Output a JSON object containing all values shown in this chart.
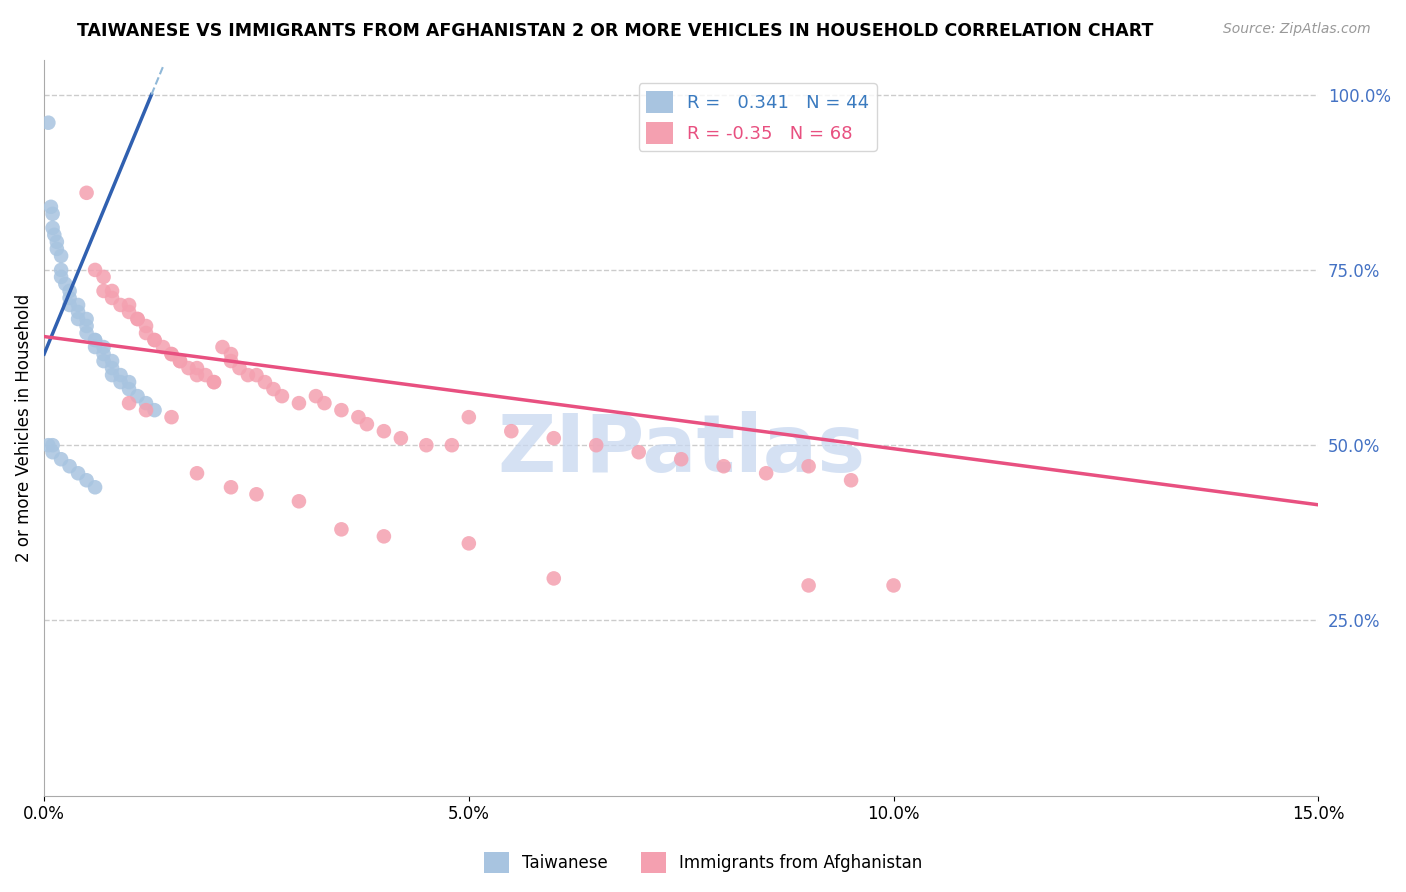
{
  "title": "TAIWANESE VS IMMIGRANTS FROM AFGHANISTAN 2 OR MORE VEHICLES IN HOUSEHOLD CORRELATION CHART",
  "source": "Source: ZipAtlas.com",
  "ylabel": "2 or more Vehicles in Household",
  "x_min": 0.0,
  "x_max": 0.15,
  "y_min": 0.0,
  "y_max": 1.05,
  "right_yticks": [
    1.0,
    0.75,
    0.5,
    0.25
  ],
  "right_yticklabels": [
    "100.0%",
    "75.0%",
    "50.0%",
    "25.0%"
  ],
  "x_tick_positions": [
    0.0,
    0.05,
    0.1,
    0.15
  ],
  "x_tick_labels": [
    "0.0%",
    "5.0%",
    "10.0%",
    "15.0%"
  ],
  "gridline_color": "#cccccc",
  "gridline_style": "--",
  "background_color": "#ffffff",
  "taiwanese_color": "#a8c4e0",
  "afghanistan_color": "#f4a0b0",
  "taiwan_line_color": "#3060b0",
  "taiwan_line_dashed_color": "#90b8d8",
  "afghanistan_line_color": "#e85080",
  "taiwan_R": 0.341,
  "taiwan_N": 44,
  "afghanistan_R": -0.35,
  "afghanistan_N": 68,
  "watermark": "ZIPatlas",
  "watermark_color": "#c8d8f0",
  "taiwan_line_x0": 0.0,
  "taiwan_line_y0": 0.63,
  "taiwan_line_x1": 0.014,
  "taiwan_line_y1": 1.04,
  "afghanistan_line_x0": 0.0,
  "afghanistan_line_y0": 0.655,
  "afghanistan_line_x1": 0.15,
  "afghanistan_line_y1": 0.415,
  "taiwan_scatter_x": [
    0.0005,
    0.0008,
    0.001,
    0.001,
    0.0012,
    0.0015,
    0.0015,
    0.002,
    0.002,
    0.002,
    0.0025,
    0.003,
    0.003,
    0.003,
    0.004,
    0.004,
    0.004,
    0.005,
    0.005,
    0.005,
    0.006,
    0.006,
    0.006,
    0.007,
    0.007,
    0.007,
    0.008,
    0.008,
    0.008,
    0.009,
    0.009,
    0.01,
    0.01,
    0.011,
    0.012,
    0.013,
    0.0005,
    0.001,
    0.001,
    0.002,
    0.003,
    0.004,
    0.005,
    0.006
  ],
  "taiwan_scatter_y": [
    0.96,
    0.84,
    0.83,
    0.81,
    0.8,
    0.79,
    0.78,
    0.77,
    0.75,
    0.74,
    0.73,
    0.72,
    0.71,
    0.7,
    0.7,
    0.69,
    0.68,
    0.68,
    0.67,
    0.66,
    0.65,
    0.65,
    0.64,
    0.64,
    0.63,
    0.62,
    0.62,
    0.61,
    0.6,
    0.6,
    0.59,
    0.59,
    0.58,
    0.57,
    0.56,
    0.55,
    0.5,
    0.5,
    0.49,
    0.48,
    0.47,
    0.46,
    0.45,
    0.44
  ],
  "afghanistan_scatter_x": [
    0.005,
    0.006,
    0.007,
    0.007,
    0.008,
    0.008,
    0.009,
    0.01,
    0.01,
    0.011,
    0.011,
    0.012,
    0.012,
    0.013,
    0.013,
    0.014,
    0.015,
    0.015,
    0.016,
    0.016,
    0.017,
    0.018,
    0.018,
    0.019,
    0.02,
    0.02,
    0.021,
    0.022,
    0.022,
    0.023,
    0.024,
    0.025,
    0.026,
    0.027,
    0.028,
    0.03,
    0.032,
    0.033,
    0.035,
    0.037,
    0.038,
    0.04,
    0.042,
    0.045,
    0.048,
    0.05,
    0.055,
    0.06,
    0.065,
    0.07,
    0.075,
    0.08,
    0.085,
    0.09,
    0.095,
    0.01,
    0.012,
    0.015,
    0.018,
    0.022,
    0.025,
    0.03,
    0.035,
    0.04,
    0.05,
    0.06,
    0.09,
    0.1
  ],
  "afghanistan_scatter_y": [
    0.86,
    0.75,
    0.74,
    0.72,
    0.72,
    0.71,
    0.7,
    0.7,
    0.69,
    0.68,
    0.68,
    0.67,
    0.66,
    0.65,
    0.65,
    0.64,
    0.63,
    0.63,
    0.62,
    0.62,
    0.61,
    0.61,
    0.6,
    0.6,
    0.59,
    0.59,
    0.64,
    0.63,
    0.62,
    0.61,
    0.6,
    0.6,
    0.59,
    0.58,
    0.57,
    0.56,
    0.57,
    0.56,
    0.55,
    0.54,
    0.53,
    0.52,
    0.51,
    0.5,
    0.5,
    0.54,
    0.52,
    0.51,
    0.5,
    0.49,
    0.48,
    0.47,
    0.46,
    0.47,
    0.45,
    0.56,
    0.55,
    0.54,
    0.46,
    0.44,
    0.43,
    0.42,
    0.38,
    0.37,
    0.36,
    0.31,
    0.3,
    0.3
  ]
}
